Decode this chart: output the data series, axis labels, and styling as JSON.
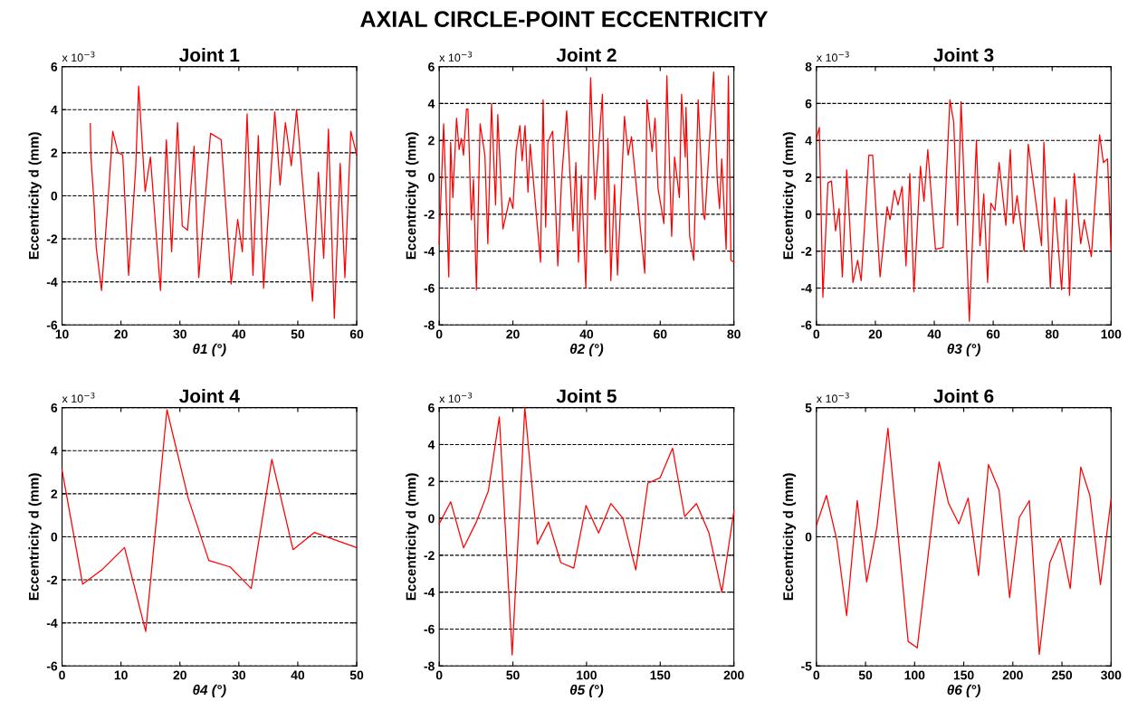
{
  "chart_data": [
    {
      "type": "line",
      "title": "Joint 1",
      "xlabel": "θ1 (°)",
      "ylabel": "Eccentricity d (mm)",
      "annotations": [
        "AXIAL CIRCLE-POINT ECCENTRICITY",
        "x 10$^{−3}$"
      ],
      "grid": "y",
      "xlim": [
        10,
        60
      ],
      "ylim": [
        -6,
        6
      ],
      "xticks": [
        10,
        20,
        30,
        40,
        50,
        60
      ],
      "yticks": [
        -6,
        -4,
        -2,
        0,
        2,
        4,
        6
      ],
      "x": [
        14.8,
        14.9,
        15.4,
        15.8,
        16.7,
        17.7,
        18.6,
        19.5,
        20.3,
        21.3,
        22.5,
        23.0,
        24.1,
        25.0,
        26.7,
        27.7,
        28.6,
        29.6,
        30.4,
        31.3,
        32.4,
        33.2,
        35.2,
        37.0,
        38.7,
        39.8,
        40.6,
        41.4,
        42.4,
        43.3,
        44.2,
        46.1,
        47.0,
        47.9,
        48.9,
        49.8,
        52.5,
        53.5,
        54.4,
        55.2,
        56.2,
        57.2,
        58.0,
        59.0,
        60.0
      ],
      "series": [
        {
          "color": "#ff0000",
          "values": [
            3.35,
            1.8,
            -0.2,
            -2.4,
            -4.4,
            -0.6,
            3.0,
            2.0,
            1.9,
            -3.7,
            1.3,
            5.1,
            0.2,
            1.8,
            -4.4,
            2.6,
            -2.6,
            3.4,
            -1.4,
            -1.6,
            2.3,
            -3.8,
            2.9,
            2.6,
            -4.1,
            -1.1,
            -2.6,
            3.8,
            -3.7,
            2.8,
            -4.3,
            3.9,
            0.5,
            3.4,
            1.4,
            4.0,
            -4.9,
            1.1,
            -2.9,
            3.1,
            -5.7,
            1.5,
            -3.8,
            3.0,
            1.9
          ]
        }
      ]
    },
    {
      "type": "line",
      "title": "Joint 2",
      "xlabel": "θ2 (°)",
      "ylabel": "Eccentricity d (mm)",
      "annotations": [
        "x 10$^{−3}$"
      ],
      "grid": "y",
      "xlim": [
        0,
        80
      ],
      "ylim": [
        -8,
        6
      ],
      "xticks": [
        0,
        20,
        40,
        60,
        80
      ],
      "yticks": [
        -8,
        -6,
        -4,
        -2,
        0,
        2,
        4,
        6
      ],
      "x": [
        0,
        0.4,
        1.2,
        1.8,
        2.6,
        3.1,
        3.7,
        4.7,
        5.4,
        6.0,
        6.6,
        7.4,
        7.8,
        8.7,
        9.3,
        10.1,
        11.1,
        12.4,
        13.2,
        14.2,
        15.3,
        15.9,
        17.3,
        19.2,
        20.0,
        20.9,
        21.9,
        22.5,
        23.3,
        24.1,
        24.7,
        27.5,
        28.2,
        28.9,
        29.5,
        30.8,
        32.2,
        33.2,
        34.6,
        36.3,
        37.1,
        37.8,
        38.6,
        39.8,
        41.1,
        42.3,
        44.3,
        45.1,
        45.8,
        46.6,
        47.6,
        48.4,
        50.3,
        51.3,
        52.2,
        55.8,
        56.4,
        57.8,
        58.6,
        59.4,
        61.0,
        61.8,
        63.1,
        63.9,
        65.2,
        65.8,
        66.8,
        67.0,
        68.0,
        69.1,
        70.3,
        71.7,
        72.1,
        74.5,
        75.5,
        76.1,
        76.7,
        77.9,
        78.5,
        79.2,
        80.0
      ],
      "series": [
        {
          "color": "#ff0000",
          "values": [
            -3.6,
            -1.4,
            2.9,
            -0.6,
            -5.4,
            1.9,
            -1.1,
            3.2,
            1.5,
            2.1,
            1.2,
            3.7,
            3.7,
            -2.3,
            -0.1,
            -6.1,
            2.9,
            1.2,
            -3.6,
            4.0,
            -1.5,
            3.4,
            -2.8,
            -1.1,
            -1.7,
            1.5,
            2.8,
            0.9,
            2.8,
            -0.8,
            1.8,
            -4.6,
            4.2,
            -2.7,
            1.9,
            2.5,
            -4.8,
            -0.2,
            3.6,
            -2.9,
            0.8,
            -4.6,
            0.1,
            -6.0,
            5.4,
            -1.2,
            4.5,
            -4.1,
            2.1,
            -5.6,
            -0.4,
            -5.3,
            3.3,
            1.2,
            2.2,
            -5.2,
            4.2,
            1.4,
            3.2,
            -0.6,
            -2.5,
            5.5,
            -3.2,
            1.1,
            -1.1,
            4.5,
            1.1,
            3.8,
            -3.2,
            -4.5,
            4.2,
            -2.0,
            -2.3,
            5.7,
            -0.2,
            -1.7,
            1.0,
            -3.9,
            5.5,
            -4.5,
            -4.6
          ]
        }
      ]
    },
    {
      "type": "line",
      "title": "Joint 3",
      "xlabel": "θ3 (°)",
      "ylabel": "Eccentricity d (mm)",
      "annotations": [
        "x 10$^{−3}$"
      ],
      "grid": "y",
      "xlim": [
        0,
        100
      ],
      "ylim": [
        -6,
        8
      ],
      "xticks": [
        0,
        20,
        40,
        60,
        80,
        100
      ],
      "yticks": [
        -6,
        -4,
        -2,
        0,
        2,
        4,
        6,
        8
      ],
      "x": [
        0,
        1.0,
        2.2,
        3.9,
        5.1,
        6.5,
        7.7,
        8.8,
        10.3,
        12.4,
        14.0,
        15.2,
        17.8,
        19.1,
        21.6,
        24.0,
        25.0,
        26.5,
        27.7,
        29.1,
        30.4,
        31.7,
        33.1,
        35.3,
        36.5,
        37.8,
        40.4,
        43.0,
        45.3,
        46.6,
        47.9,
        49.1,
        51.9,
        54.3,
        55.5,
        56.8,
        58.1,
        59.2,
        60.6,
        62.0,
        64.3,
        65.8,
        66.8,
        68.1,
        70.5,
        71.9,
        76.4,
        77.2,
        79.4,
        80.8,
        83.2,
        84.8,
        85.9,
        87.5,
        89.7,
        90.9,
        93.3,
        96.1,
        97.4,
        98.8,
        100
      ],
      "series": [
        {
          "color": "#ff0000",
          "values": [
            4.1,
            4.7,
            -4.5,
            1.7,
            1.8,
            -0.9,
            0.3,
            -3.4,
            2.4,
            -3.7,
            -2.5,
            -3.6,
            3.2,
            3.2,
            -3.4,
            0.4,
            -0.3,
            1.3,
            0.5,
            1.5,
            -2.8,
            2.2,
            -4.2,
            2.6,
            0.7,
            3.5,
            -1.9,
            -1.8,
            6.2,
            5.0,
            -0.6,
            6.1,
            -5.8,
            4.0,
            -1.7,
            1.1,
            -3.7,
            0.6,
            0.2,
            2.8,
            -0.6,
            3.5,
            -0.5,
            1.0,
            -2.0,
            3.8,
            -1.7,
            3.9,
            -4.0,
            0.9,
            -4.1,
            0.8,
            -4.4,
            2.2,
            -1.6,
            -0.3,
            -2.3,
            4.3,
            2.8,
            3.0,
            -1.9
          ]
        }
      ]
    },
    {
      "type": "line",
      "title": "Joint 4",
      "xlabel": "θ4 (°)",
      "ylabel": "Eccentricity d (mm)",
      "annotations": [
        "x 10$^{−3}$"
      ],
      "grid": "y",
      "xlim": [
        0,
        50
      ],
      "ylim": [
        -6,
        6
      ],
      "xticks": [
        0,
        10,
        20,
        30,
        40,
        50
      ],
      "yticks": [
        -6,
        -4,
        -2,
        0,
        2,
        4,
        6
      ],
      "x": [
        0,
        3.5,
        6.9,
        10.6,
        14.2,
        17.8,
        21.4,
        24.9,
        28.5,
        32.1,
        35.6,
        39.2,
        42.8,
        50
      ],
      "series": [
        {
          "color": "#ff0000",
          "values": [
            3.1,
            -2.2,
            -1.5,
            -0.5,
            -4.4,
            5.9,
            1.8,
            -1.1,
            -1.4,
            -2.4,
            3.6,
            -0.6,
            0.2,
            -0.5
          ]
        }
      ]
    },
    {
      "type": "line",
      "title": "Joint 5",
      "xlabel": "θ5 (°)",
      "ylabel": "Eccentricity d (mm)",
      "annotations": [
        "x 10$^{−3}$"
      ],
      "grid": "y",
      "xlim": [
        0,
        200
      ],
      "ylim": [
        -8,
        6
      ],
      "xticks": [
        0,
        50,
        100,
        150,
        200
      ],
      "yticks": [
        -8,
        -6,
        -4,
        -2,
        0,
        2,
        4,
        6
      ],
      "x": [
        0,
        7.8,
        16.5,
        25.2,
        33.4,
        40.8,
        49.5,
        58.1,
        66.6,
        74.2,
        82.5,
        91.3,
        99.6,
        108.2,
        116.5,
        124.7,
        133.4,
        141.6,
        149.9,
        158.4,
        166.6,
        174.6,
        183.1,
        191.8,
        200
      ],
      "series": [
        {
          "color": "#ff0000",
          "values": [
            -0.3,
            0.9,
            -1.6,
            -0.2,
            1.5,
            5.5,
            -7.4,
            6.0,
            -1.4,
            -0.2,
            -2.4,
            -2.7,
            0.7,
            -0.8,
            0.8,
            0.0,
            -2.8,
            1.9,
            2.2,
            3.8,
            0.1,
            0.8,
            -0.8,
            -4.0,
            0.4
          ]
        }
      ]
    },
    {
      "type": "line",
      "title": "Joint 6",
      "xlabel": "θ6 (°)",
      "ylabel": "Eccentricity d (mm)",
      "annotations": [
        "x 10$^{−3}$"
      ],
      "grid": "y",
      "xlim": [
        0,
        300
      ],
      "ylim": [
        -5,
        5
      ],
      "xticks": [
        0,
        50,
        100,
        150,
        200,
        250,
        300
      ],
      "yticks": [
        -5,
        0,
        5
      ],
      "x": [
        0,
        10.2,
        20.9,
        30.8,
        41.6,
        51.2,
        61.7,
        72.8,
        93.4,
        102.7,
        124.9,
        134.5,
        145.0,
        154.5,
        165.0,
        175.2,
        186.0,
        196.7,
        206.6,
        216.8,
        226.9,
        237.7,
        248.2,
        258.4,
        269.2,
        278.4,
        289.2,
        300
      ],
      "series": [
        {
          "color": "#ff0000",
          "values": [
            0.45,
            1.6,
            -0.15,
            -3.05,
            1.4,
            -1.75,
            0.4,
            4.2,
            -4.05,
            -4.3,
            2.9,
            1.3,
            0.5,
            1.5,
            -1.5,
            2.8,
            1.8,
            -2.35,
            0.75,
            1.4,
            -4.55,
            -1.0,
            -0.05,
            -2.0,
            2.7,
            1.6,
            -1.85,
            1.45
          ]
        }
      ]
    }
  ]
}
